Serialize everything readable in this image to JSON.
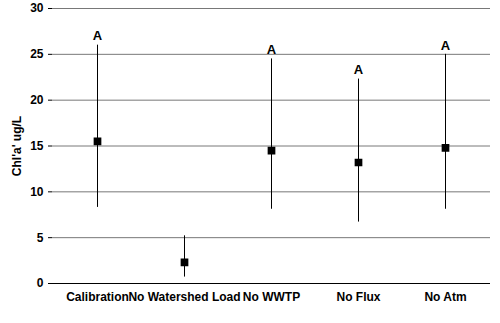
{
  "chart_data": {
    "type": "scatter",
    "categories": [
      "Calibration",
      "No Watershed Load",
      "No WWTP",
      "No Flux",
      "No Atm"
    ],
    "values": [
      15.5,
      2.3,
      14.5,
      13.2,
      14.8
    ],
    "lower": [
      8.3,
      0.7,
      8.1,
      6.7,
      8.1
    ],
    "upper": [
      26,
      5.2,
      24.5,
      22.3,
      25
    ],
    "annotations": [
      "A",
      null,
      "A",
      "A",
      "A"
    ],
    "y_label": "Chl'a' ug/L",
    "ylim": [
      0,
      30
    ],
    "yticks": [
      0,
      5,
      10,
      15,
      20,
      25,
      30
    ],
    "grid": true,
    "color": "#000000",
    "marker": "square"
  }
}
